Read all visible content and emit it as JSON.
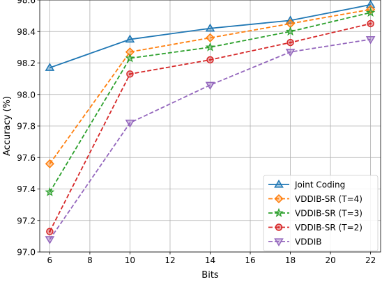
{
  "chart_data": {
    "type": "line",
    "xlabel": "Bits",
    "ylabel": "Accuracy (%)",
    "xlim": [
      5.5,
      22.5
    ],
    "ylim": [
      97.0,
      98.6
    ],
    "xticks": [
      6,
      8,
      10,
      12,
      14,
      16,
      18,
      20,
      22
    ],
    "yticks": [
      97.0,
      97.2,
      97.4,
      97.6,
      97.8,
      98.0,
      98.2,
      98.4,
      98.6
    ],
    "grid": true,
    "legend_position": "bottom-right",
    "x": [
      6,
      10,
      14,
      18,
      22
    ],
    "series": [
      {
        "name": "Joint Coding",
        "values": [
          98.17,
          98.35,
          98.42,
          98.47,
          98.57
        ],
        "color": "#1f77b4",
        "marker": "triangle-up",
        "dashed": false
      },
      {
        "name": "VDDIB-SR (T=4)",
        "values": [
          97.56,
          98.27,
          98.36,
          98.45,
          98.54
        ],
        "color": "#ff7f0e",
        "marker": "diamond",
        "dashed": true
      },
      {
        "name": "VDDIB-SR (T=3)",
        "values": [
          97.38,
          98.23,
          98.3,
          98.4,
          98.52
        ],
        "color": "#2ca02c",
        "marker": "star",
        "dashed": true
      },
      {
        "name": "VDDIB-SR (T=2)",
        "values": [
          97.13,
          98.13,
          98.22,
          98.33,
          98.45
        ],
        "color": "#d62728",
        "marker": "circle-dot",
        "dashed": true
      },
      {
        "name": "VDDIB",
        "values": [
          97.08,
          97.82,
          98.06,
          98.27,
          98.35
        ],
        "color": "#9467bd",
        "marker": "triangle-down",
        "dashed": true
      }
    ]
  }
}
